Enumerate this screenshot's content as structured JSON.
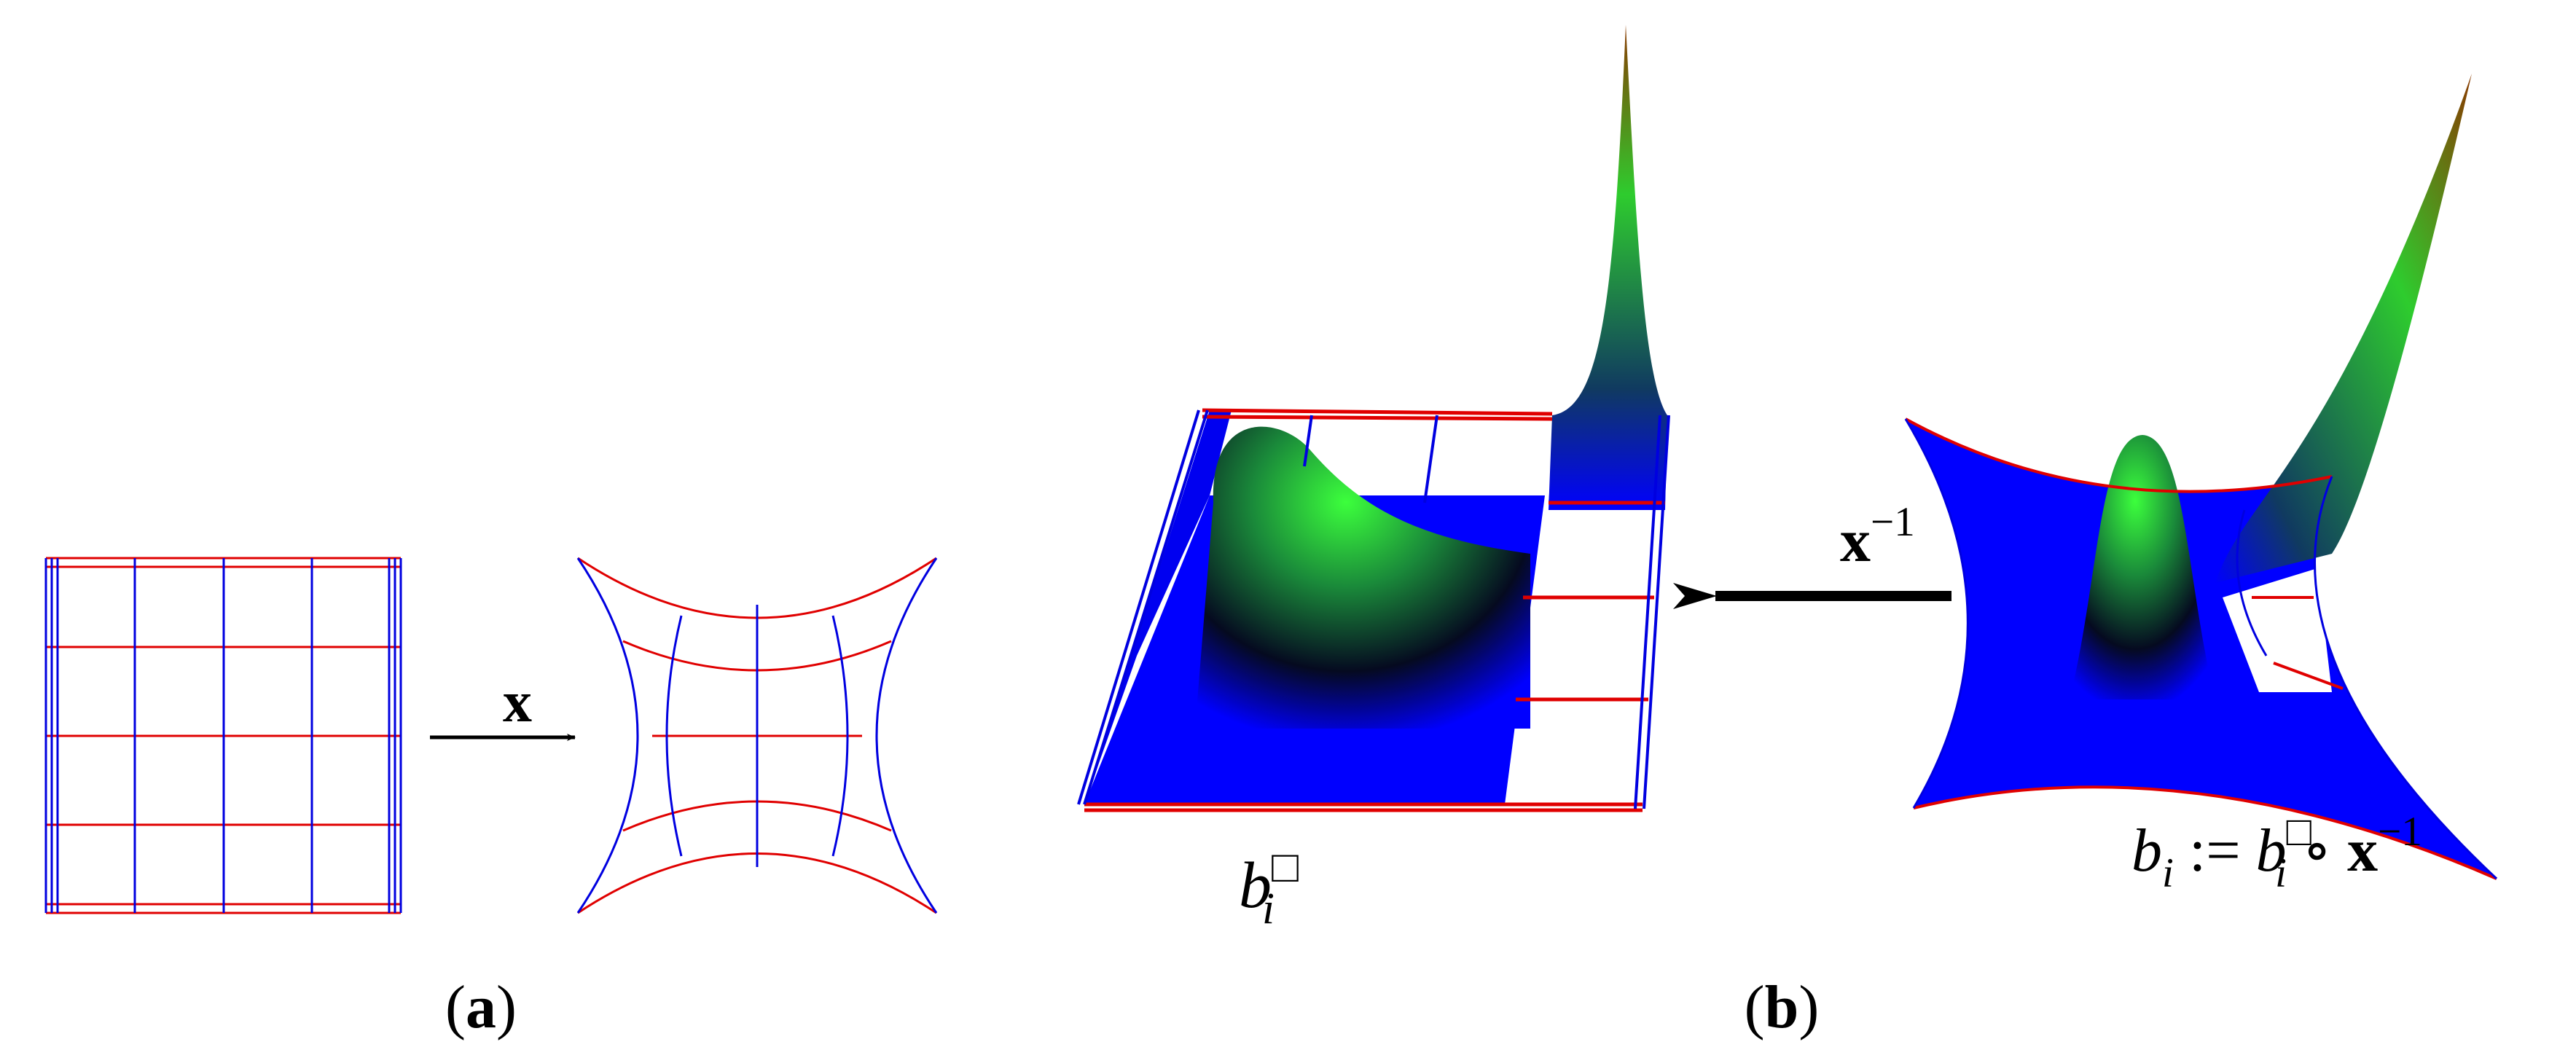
{
  "panel_a": {
    "label": [
      {
        "text": "(",
        "style": "normal"
      },
      {
        "text": "a",
        "style": "bold"
      },
      {
        "text": ")",
        "style": "normal"
      }
    ],
    "arrow_label": [
      {
        "text": "x",
        "style": "bold"
      }
    ]
  },
  "panel_b": {
    "label": [
      {
        "text": "(",
        "style": "normal"
      },
      {
        "text": "b",
        "style": "bold"
      },
      {
        "text": ")",
        "style": "normal"
      }
    ],
    "arrow_label": [
      {
        "text": "x",
        "style": "bold"
      },
      {
        "text": "−1",
        "style": "sup"
      }
    ],
    "surface_label": [
      {
        "text": "b",
        "style": "italic"
      },
      {
        "text": "□",
        "style": "sup"
      },
      {
        "text": "i",
        "style": "sub-italic"
      }
    ],
    "composite_label": [
      {
        "text": "b",
        "style": "italic"
      },
      {
        "text": "i",
        "style": "sub-italic"
      },
      {
        "text": " := ",
        "style": "normal"
      },
      {
        "text": "b",
        "style": "italic"
      },
      {
        "text": "□",
        "style": "sup"
      },
      {
        "text": "i",
        "style": "sub-italic"
      },
      {
        "text": " ∘ ",
        "style": "normal"
      },
      {
        "text": "x",
        "style": "bold"
      },
      {
        "text": "−1",
        "style": "sup"
      }
    ]
  }
}
